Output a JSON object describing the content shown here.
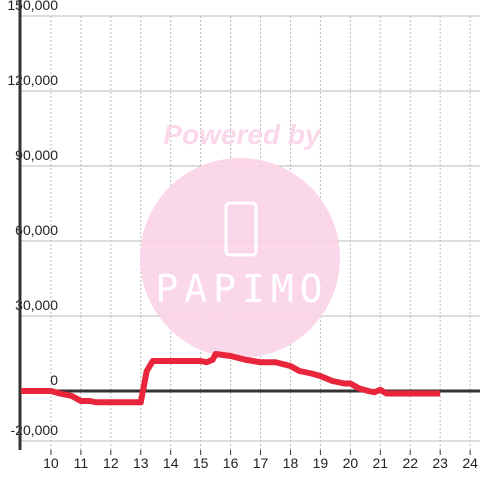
{
  "chart_data": {
    "type": "line",
    "watermark": {
      "top": "Powered by",
      "logo": "PAPIMO"
    },
    "x": [
      9,
      10,
      10.3,
      10.7,
      11,
      11.3,
      11.5,
      12,
      12.5,
      13,
      13.2,
      13.4,
      14,
      15,
      15.2,
      15.4,
      15.5,
      16,
      16.5,
      17,
      17.5,
      18,
      18.3,
      18.7,
      19,
      19.4,
      19.8,
      20,
      20.3,
      20.6,
      20.8,
      21,
      21.2,
      21.5,
      22,
      23
    ],
    "series": [
      {
        "color": "#e8253b",
        "values": [
          0,
          0,
          -1000,
          -2000,
          -4000,
          -4000,
          -4500,
          -4500,
          -4500,
          -4500,
          8000,
          12000,
          12000,
          12000,
          11500,
          12500,
          14800,
          14000,
          12500,
          11500,
          11500,
          10000,
          8000,
          7000,
          6000,
          4000,
          3000,
          3000,
          1000,
          0,
          -500,
          500,
          -1000,
          -1000,
          -1000,
          -1000
        ]
      }
    ],
    "xlim": [
      9,
      24.33
    ],
    "xticks": [
      10,
      11,
      12,
      13,
      14,
      15,
      16,
      17,
      18,
      19,
      20,
      21,
      22,
      23,
      24
    ],
    "ylim": [
      -20000,
      150000
    ],
    "yticks": [
      {
        "value": -20000,
        "label": "-20,000"
      },
      0,
      {
        "value": 30000,
        "label": "30,000"
      },
      {
        "value": 60000,
        "label": "60,000"
      },
      {
        "value": 90000,
        "label": "90,000"
      },
      {
        "value": 120000,
        "label": "120,000"
      },
      {
        "value": 150000,
        "label": "150,000"
      }
    ],
    "grid": true
  }
}
